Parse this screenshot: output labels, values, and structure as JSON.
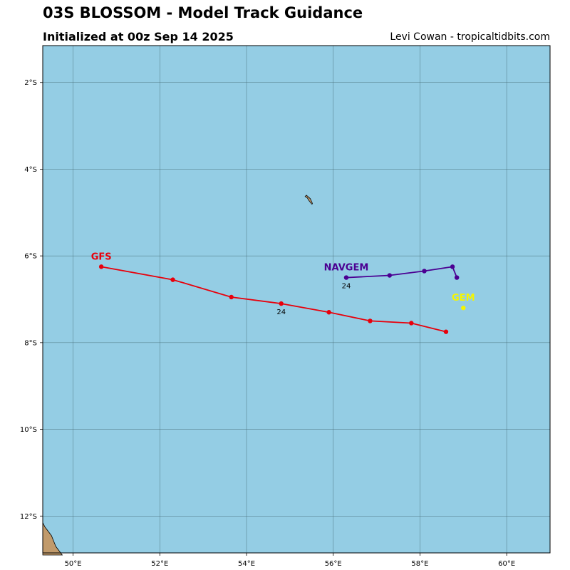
{
  "header": {
    "title": "03S BLOSSOM - Model Track Guidance",
    "subtitle": "Initialized at 00z Sep 14 2025",
    "credit": "Levi Cowan - tropicaltidbits.com"
  },
  "colors": {
    "ocean": "#94cde4",
    "land": "#c19a6b",
    "grid": "#4a6f7a",
    "GFS": "#e8000b",
    "NAVGEM": "#4b0092",
    "GEM": "#f5f500"
  },
  "chart_data": {
    "type": "map",
    "lon_range": [
      49.3,
      61.0
    ],
    "lat_range": [
      -12.85,
      -1.15
    ],
    "x_ticks": [
      {
        "value": 50,
        "label": "50°E"
      },
      {
        "value": 52,
        "label": "52°E"
      },
      {
        "value": 54,
        "label": "54°E"
      },
      {
        "value": 56,
        "label": "56°E"
      },
      {
        "value": 58,
        "label": "58°E"
      },
      {
        "value": 60,
        "label": "60°E"
      }
    ],
    "y_ticks": [
      {
        "value": -2,
        "label": "2°S"
      },
      {
        "value": -4,
        "label": "4°S"
      },
      {
        "value": -6,
        "label": "6°S"
      },
      {
        "value": -8,
        "label": "8°S"
      },
      {
        "value": -10,
        "label": "10°S"
      },
      {
        "value": -12,
        "label": "12°S"
      }
    ],
    "grid": true,
    "series": [
      {
        "name": "GFS",
        "points": [
          [
            50.65,
            -6.25
          ],
          [
            52.3,
            -6.55
          ],
          [
            53.65,
            -6.95
          ],
          [
            54.8,
            -7.1
          ],
          [
            55.9,
            -7.3
          ],
          [
            56.85,
            -7.5
          ],
          [
            57.8,
            -7.55
          ],
          [
            58.6,
            -7.75
          ]
        ],
        "hour_labels": [
          {
            "index": 3,
            "text": "24"
          }
        ]
      },
      {
        "name": "NAVGEM",
        "points": [
          [
            56.3,
            -6.5
          ],
          [
            57.3,
            -6.45
          ],
          [
            58.1,
            -6.35
          ],
          [
            58.75,
            -6.25
          ],
          [
            58.85,
            -6.5
          ]
        ],
        "hour_labels": [
          {
            "index": 0,
            "text": "24"
          }
        ]
      },
      {
        "name": "GEM",
        "points": [
          [
            59.0,
            -7.2
          ]
        ],
        "hour_labels": []
      }
    ],
    "land": [
      {
        "name": "island",
        "lonlat": [
          [
            55.38,
            -4.6
          ],
          [
            55.47,
            -4.68
          ],
          [
            55.52,
            -4.79
          ],
          [
            55.51,
            -4.81
          ],
          [
            55.45,
            -4.74
          ],
          [
            55.4,
            -4.66
          ],
          [
            55.35,
            -4.63
          ]
        ]
      },
      {
        "name": "madagascar-coast",
        "lonlat": [
          [
            49.3,
            -12.15
          ],
          [
            49.35,
            -12.25
          ],
          [
            49.5,
            -12.45
          ],
          [
            49.6,
            -12.7
          ],
          [
            49.75,
            -12.9
          ],
          [
            49.3,
            -12.9
          ]
        ]
      }
    ]
  }
}
